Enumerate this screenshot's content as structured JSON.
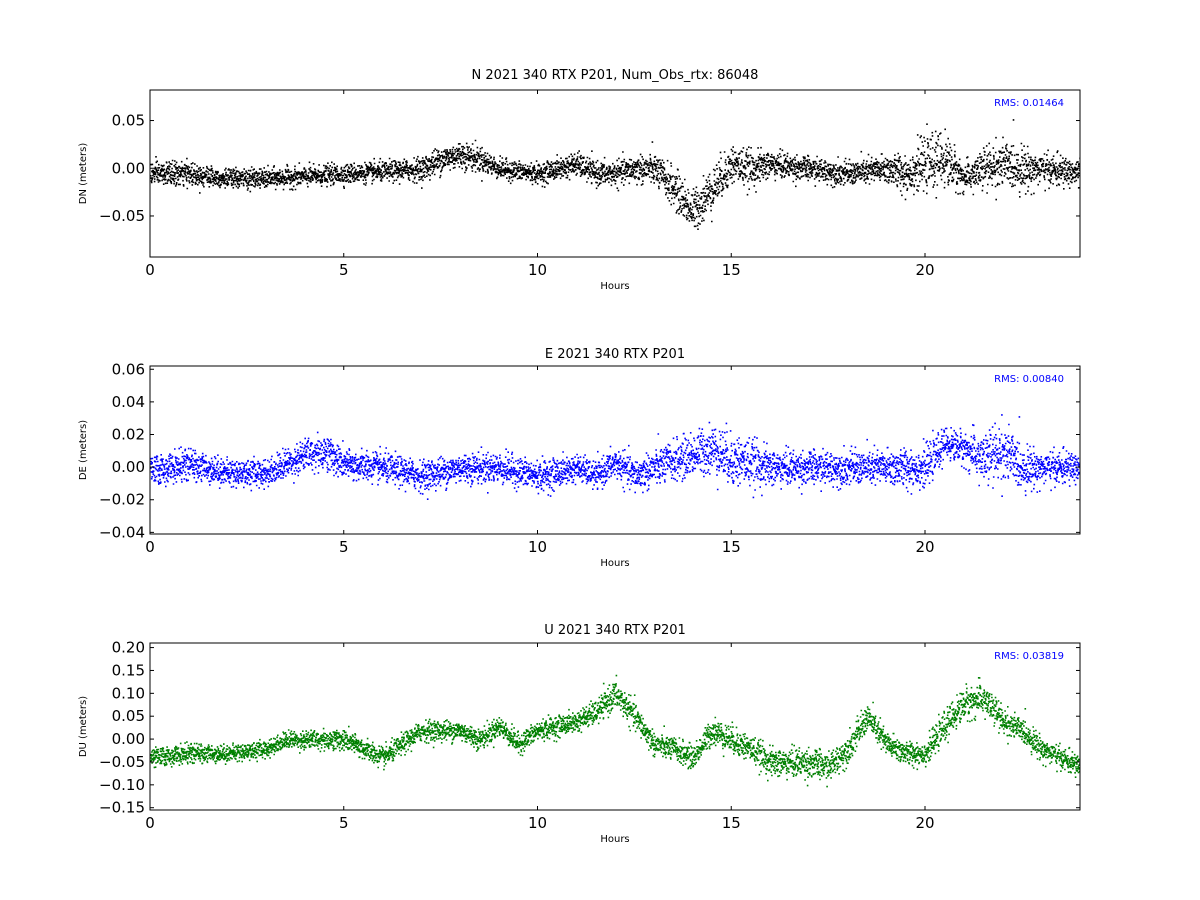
{
  "chart_data": [
    {
      "type": "scatter",
      "title": "N 2021 340 RTX  P201, Num_Obs_rtx: 86048",
      "xlabel": "Hours",
      "ylabel": "DN (meters)",
      "xlim": [
        0,
        24
      ],
      "ylim": [
        -0.093,
        0.082
      ],
      "xticks": [
        "0",
        "5",
        "10",
        "15",
        "20"
      ],
      "yticks": [
        "0.05",
        "0.00",
        "−0.05"
      ],
      "ytick_values": [
        0.05,
        0.0,
        -0.05
      ],
      "color": "#000000",
      "annotation": "RMS:  0.01464",
      "annotation_color": "#0000ff",
      "grid": false,
      "series": [
        {
          "x": [
            0,
            1,
            2,
            3,
            4,
            5,
            6,
            7,
            7.5,
            8,
            8.5,
            9,
            10,
            11,
            11.5,
            12,
            12.5,
            13,
            13.5,
            14,
            14.5,
            15,
            15.5,
            16,
            17,
            18,
            19,
            19.5,
            20,
            20.5,
            21,
            21.5,
            22,
            22.5,
            23,
            24
          ],
          "y": [
            -0.005,
            -0.005,
            -0.01,
            -0.01,
            -0.008,
            -0.005,
            -0.003,
            0.0,
            0.01,
            0.015,
            0.01,
            0.0,
            -0.005,
            0.005,
            -0.005,
            -0.005,
            0.0,
            0.0,
            -0.02,
            -0.045,
            -0.02,
            0.005,
            0.0,
            0.005,
            0.0,
            -0.005,
            0.0,
            -0.005,
            0.005,
            0.01,
            -0.01,
            0.0,
            0.005,
            0.0,
            0.0,
            -0.005
          ],
          "spread": [
            0.012,
            0.012,
            0.01,
            0.01,
            0.01,
            0.01,
            0.01,
            0.012,
            0.014,
            0.014,
            0.013,
            0.01,
            0.01,
            0.012,
            0.012,
            0.012,
            0.014,
            0.016,
            0.02,
            0.022,
            0.022,
            0.02,
            0.018,
            0.014,
            0.012,
            0.012,
            0.015,
            0.02,
            0.026,
            0.028,
            0.014,
            0.022,
            0.024,
            0.022,
            0.016,
            0.014
          ]
        }
      ]
    },
    {
      "type": "scatter",
      "title": "E 2021 340 RTX  P201",
      "xlabel": "Hours",
      "ylabel": "DE (meters)",
      "xlim": [
        0,
        24
      ],
      "ylim": [
        -0.041,
        0.062
      ],
      "xticks": [
        "0",
        "5",
        "10",
        "15",
        "20"
      ],
      "yticks": [
        "0.06",
        "0.04",
        "0.02",
        "0.00",
        "−0.02",
        "−0.04"
      ],
      "ytick_values": [
        0.06,
        0.04,
        0.02,
        0.0,
        -0.02,
        -0.04
      ],
      "color": "#0000ff",
      "annotation": "RMS:  0.00840",
      "annotation_color": "#0000ff",
      "grid": false,
      "series": [
        {
          "x": [
            0,
            1,
            2,
            3,
            4,
            4.5,
            5,
            6,
            7,
            8,
            9,
            10,
            10.5,
            11,
            11.5,
            12,
            12.5,
            13,
            14,
            14.5,
            15,
            15.5,
            16,
            17,
            18,
            19,
            20,
            20.5,
            21,
            21.5,
            22,
            22.5,
            23,
            24
          ],
          "y": [
            -0.002,
            0.002,
            -0.003,
            -0.003,
            0.008,
            0.01,
            0.002,
            0.0,
            -0.005,
            0.0,
            0.0,
            -0.005,
            -0.003,
            0.0,
            -0.005,
            0.003,
            -0.005,
            0.0,
            0.008,
            0.012,
            0.005,
            0.003,
            0.0,
            0.0,
            0.0,
            0.0,
            0.0,
            0.015,
            0.012,
            0.005,
            0.01,
            0.0,
            0.0,
            0.0
          ],
          "spread": [
            0.009,
            0.009,
            0.008,
            0.008,
            0.01,
            0.011,
            0.009,
            0.009,
            0.009,
            0.009,
            0.009,
            0.009,
            0.009,
            0.008,
            0.008,
            0.009,
            0.01,
            0.011,
            0.013,
            0.015,
            0.016,
            0.014,
            0.011,
            0.01,
            0.01,
            0.011,
            0.012,
            0.009,
            0.01,
            0.016,
            0.018,
            0.013,
            0.01,
            0.009
          ]
        }
      ]
    },
    {
      "type": "scatter",
      "title": "U 2021 340 RTX  P201",
      "xlabel": "Hours",
      "ylabel": "DU (meters)",
      "xlim": [
        0,
        24
      ],
      "ylim": [
        -0.155,
        0.21
      ],
      "xticks": [
        "0",
        "5",
        "10",
        "15",
        "20"
      ],
      "yticks": [
        "0.20",
        "0.15",
        "0.10",
        "0.05",
        "0.00",
        "−0.05",
        "−0.10",
        "−0.15"
      ],
      "ytick_values": [
        0.2,
        0.15,
        0.1,
        0.05,
        0.0,
        -0.05,
        -0.1,
        -0.15
      ],
      "color": "#008000",
      "annotation": "RMS:  0.03819",
      "annotation_color": "#0000ff",
      "grid": false,
      "series": [
        {
          "x": [
            0,
            1,
            2,
            3,
            3.5,
            4,
            5,
            6,
            7,
            8,
            8.5,
            9,
            9.5,
            10,
            11,
            11.5,
            12,
            12.5,
            13,
            13.5,
            14,
            14.5,
            15,
            15.5,
            16,
            17,
            17.5,
            18,
            18.5,
            19,
            19.5,
            20,
            20.5,
            21,
            21.5,
            22,
            22.5,
            23,
            24
          ],
          "y": [
            -0.04,
            -0.03,
            -0.03,
            -0.02,
            0.0,
            0.0,
            0.0,
            -0.04,
            0.02,
            0.02,
            0.0,
            0.03,
            -0.01,
            0.02,
            0.04,
            0.06,
            0.1,
            0.05,
            -0.01,
            -0.02,
            -0.04,
            0.02,
            0.0,
            -0.02,
            -0.05,
            -0.05,
            -0.06,
            -0.02,
            0.05,
            -0.01,
            -0.03,
            -0.03,
            0.03,
            0.08,
            0.09,
            0.04,
            0.02,
            -0.02,
            -0.06
          ],
          "spread": [
            0.02,
            0.02,
            0.018,
            0.018,
            0.018,
            0.02,
            0.022,
            0.022,
            0.022,
            0.022,
            0.022,
            0.022,
            0.022,
            0.022,
            0.022,
            0.025,
            0.03,
            0.028,
            0.025,
            0.025,
            0.025,
            0.028,
            0.03,
            0.028,
            0.03,
            0.032,
            0.03,
            0.03,
            0.03,
            0.028,
            0.025,
            0.025,
            0.03,
            0.035,
            0.035,
            0.03,
            0.025,
            0.025,
            0.022
          ]
        }
      ]
    }
  ]
}
